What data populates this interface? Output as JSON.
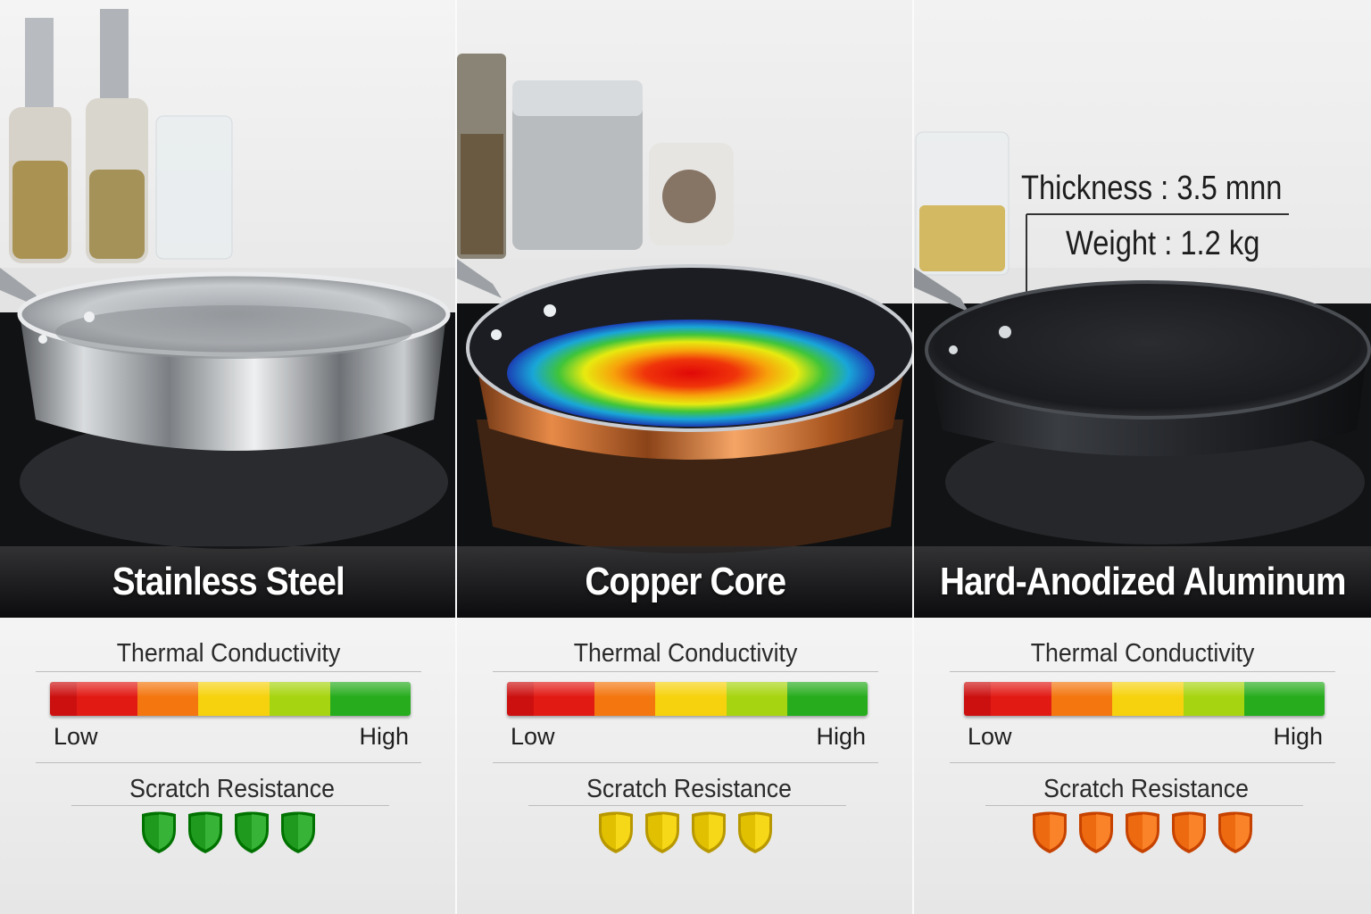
{
  "panels": [
    {
      "name": "Stainless Steel",
      "material": "stainless",
      "thermal_title": "Thermal Conductivity",
      "low_label": "Low",
      "high_label": "High",
      "scratch_title": "Scratch Resistance",
      "shield_count": 4,
      "shield_color": "#1f9a1f"
    },
    {
      "name": "Copper Core",
      "material": "copper",
      "thermal_title": "Thermal Conductivity",
      "low_label": "Low",
      "high_label": "High",
      "scratch_title": "Scratch Resistance",
      "shield_count": 4,
      "shield_color": "#e0c000"
    },
    {
      "name": "Hard-Anodized Aluminum",
      "material": "anodized",
      "thermal_title": "Thermal Conductivity",
      "low_label": "Low",
      "high_label": "High",
      "scratch_title": "Scratch Resistance",
      "shield_count": 5,
      "shield_color": "#ee6a10"
    }
  ],
  "specs": {
    "thickness": "Thickness : 3.5 mnn",
    "weight": "Weight : 1.2 kg"
  },
  "scale_colors": [
    "#cc1010",
    "#e21a14",
    "#f3760f",
    "#f6d20e",
    "#a7d410",
    "#27ac1e"
  ]
}
